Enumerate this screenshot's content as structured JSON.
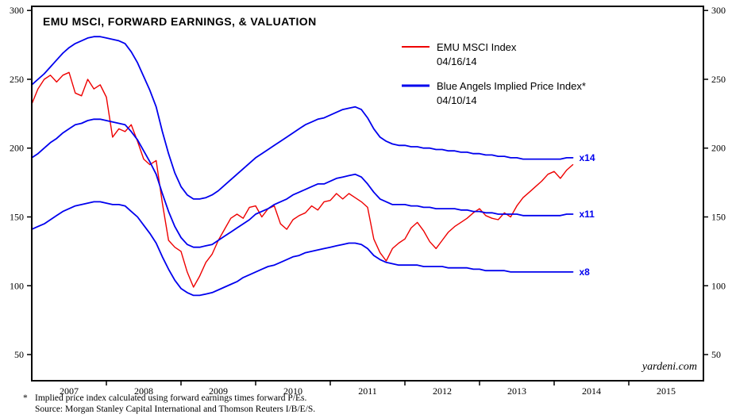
{
  "chart_data": {
    "type": "line",
    "title": "EMU MSCI, FORWARD EARNINGS, & VALUATION",
    "watermark": "yardeni.com",
    "grid": false,
    "legend_position": "inside-top-center-right",
    "ylim": [
      31,
      303
    ],
    "yticks": [
      50,
      100,
      150,
      200,
      250,
      300
    ],
    "xlim": [
      2007,
      2016
    ],
    "xtick_boundaries": [
      2008,
      2009,
      2010,
      2011,
      2012,
      2013,
      2014,
      2015
    ],
    "xtick_labels": [
      2007,
      2008,
      2009,
      2010,
      2011,
      2012,
      2013,
      2014,
      2015
    ],
    "legend": [
      {
        "name": "EMU MSCI Index",
        "date": "04/16/14",
        "color": "#ee0000",
        "line_width": 2
      },
      {
        "name": "Blue Angels Implied Price Index*",
        "date": "04/10/14",
        "color": "#0000ee",
        "line_width": 3
      }
    ],
    "x": [
      2007.0,
      2007.083,
      2007.167,
      2007.25,
      2007.333,
      2007.417,
      2007.5,
      2007.583,
      2007.667,
      2007.75,
      2007.833,
      2007.917,
      2008.0,
      2008.083,
      2008.167,
      2008.25,
      2008.333,
      2008.417,
      2008.5,
      2008.583,
      2008.667,
      2008.75,
      2008.833,
      2008.917,
      2009.0,
      2009.083,
      2009.167,
      2009.25,
      2009.333,
      2009.417,
      2009.5,
      2009.583,
      2009.667,
      2009.75,
      2009.833,
      2009.917,
      2010.0,
      2010.083,
      2010.167,
      2010.25,
      2010.333,
      2010.417,
      2010.5,
      2010.583,
      2010.667,
      2010.75,
      2010.833,
      2010.917,
      2011.0,
      2011.083,
      2011.167,
      2011.25,
      2011.333,
      2011.417,
      2011.5,
      2011.583,
      2011.667,
      2011.75,
      2011.833,
      2011.917,
      2012.0,
      2012.083,
      2012.167,
      2012.25,
      2012.333,
      2012.417,
      2012.5,
      2012.583,
      2012.667,
      2012.75,
      2012.833,
      2012.917,
      2013.0,
      2013.083,
      2013.167,
      2013.25,
      2013.333,
      2013.417,
      2013.5,
      2013.583,
      2013.667,
      2013.75,
      2013.833,
      2013.917,
      2014.0,
      2014.083,
      2014.167,
      2014.25
    ],
    "series": [
      {
        "name": "EMU MSCI Index",
        "color": "#ee0000",
        "width": 1.4,
        "end_label": "",
        "values": [
          232,
          243,
          250,
          253,
          248,
          253,
          255,
          240,
          238,
          250,
          243,
          246,
          237,
          208,
          214,
          212,
          217,
          205,
          192,
          188,
          191,
          160,
          133,
          128,
          125,
          110,
          99,
          107,
          117,
          123,
          133,
          141,
          149,
          152,
          149,
          157,
          158,
          150,
          156,
          158,
          145,
          141,
          148,
          151,
          153,
          158,
          155,
          161,
          162,
          167,
          163,
          167,
          164,
          161,
          157,
          134,
          124,
          118,
          127,
          131,
          134,
          142,
          146,
          140,
          132,
          127,
          133,
          139,
          143,
          146,
          149,
          153,
          156,
          151,
          149,
          148,
          153,
          150,
          158,
          164,
          168,
          172,
          176,
          181,
          183,
          178,
          184,
          188
        ]
      },
      {
        "name": "Blue Angels x14",
        "color": "#0000ee",
        "width": 1.8,
        "end_label": "x14",
        "values": [
          246,
          250,
          254,
          259,
          264,
          269,
          273,
          276,
          278,
          280,
          281,
          281,
          280,
          279,
          278,
          276,
          270,
          262,
          252,
          242,
          230,
          212,
          196,
          182,
          172,
          166,
          163,
          163,
          164,
          166,
          169,
          173,
          177,
          181,
          185,
          189,
          193,
          196,
          199,
          202,
          205,
          208,
          211,
          214,
          217,
          219,
          221,
          222,
          224,
          226,
          228,
          229,
          230,
          228,
          222,
          214,
          208,
          205,
          203,
          202,
          202,
          201,
          201,
          200,
          200,
          199,
          199,
          198,
          198,
          197,
          197,
          196,
          196,
          195,
          195,
          194,
          194,
          193,
          193,
          192,
          192,
          192,
          192,
          192,
          192,
          192,
          193,
          193
        ]
      },
      {
        "name": "Blue Angels x11",
        "color": "#0000ee",
        "width": 1.8,
        "end_label": "x11",
        "values": [
          193,
          196,
          200,
          204,
          207,
          211,
          214,
          217,
          218,
          220,
          221,
          221,
          220,
          219,
          218,
          217,
          212,
          206,
          198,
          190,
          181,
          167,
          154,
          143,
          135,
          130,
          128,
          128,
          129,
          130,
          133,
          136,
          139,
          142,
          145,
          148,
          152,
          154,
          156,
          159,
          161,
          163,
          166,
          168,
          170,
          172,
          174,
          174,
          176,
          178,
          179,
          180,
          181,
          179,
          174,
          168,
          163,
          161,
          159,
          159,
          159,
          158,
          158,
          157,
          157,
          156,
          156,
          156,
          156,
          155,
          155,
          154,
          154,
          153,
          153,
          152,
          152,
          152,
          152,
          151,
          151,
          151,
          151,
          151,
          151,
          151,
          152,
          152
        ]
      },
      {
        "name": "Blue Angels x8",
        "color": "#0000ee",
        "width": 1.8,
        "end_label": "x8",
        "values": [
          141,
          143,
          145,
          148,
          151,
          154,
          156,
          158,
          159,
          160,
          161,
          161,
          160,
          159,
          159,
          158,
          154,
          150,
          144,
          138,
          131,
          121,
          112,
          104,
          98,
          95,
          93,
          93,
          94,
          95,
          97,
          99,
          101,
          103,
          106,
          108,
          110,
          112,
          114,
          115,
          117,
          119,
          121,
          122,
          124,
          125,
          126,
          127,
          128,
          129,
          130,
          131,
          131,
          130,
          127,
          122,
          119,
          117,
          116,
          115,
          115,
          115,
          115,
          114,
          114,
          114,
          114,
          113,
          113,
          113,
          113,
          112,
          112,
          111,
          111,
          111,
          111,
          110,
          110,
          110,
          110,
          110,
          110,
          110,
          110,
          110,
          110,
          110
        ]
      }
    ]
  },
  "footnotes": {
    "asterisk": "*",
    "line1": "Implied price index calculated using forward earnings times forward P/Es.",
    "line2": "Source: Morgan Stanley Capital International and Thomson Reuters I/B/E/S."
  }
}
